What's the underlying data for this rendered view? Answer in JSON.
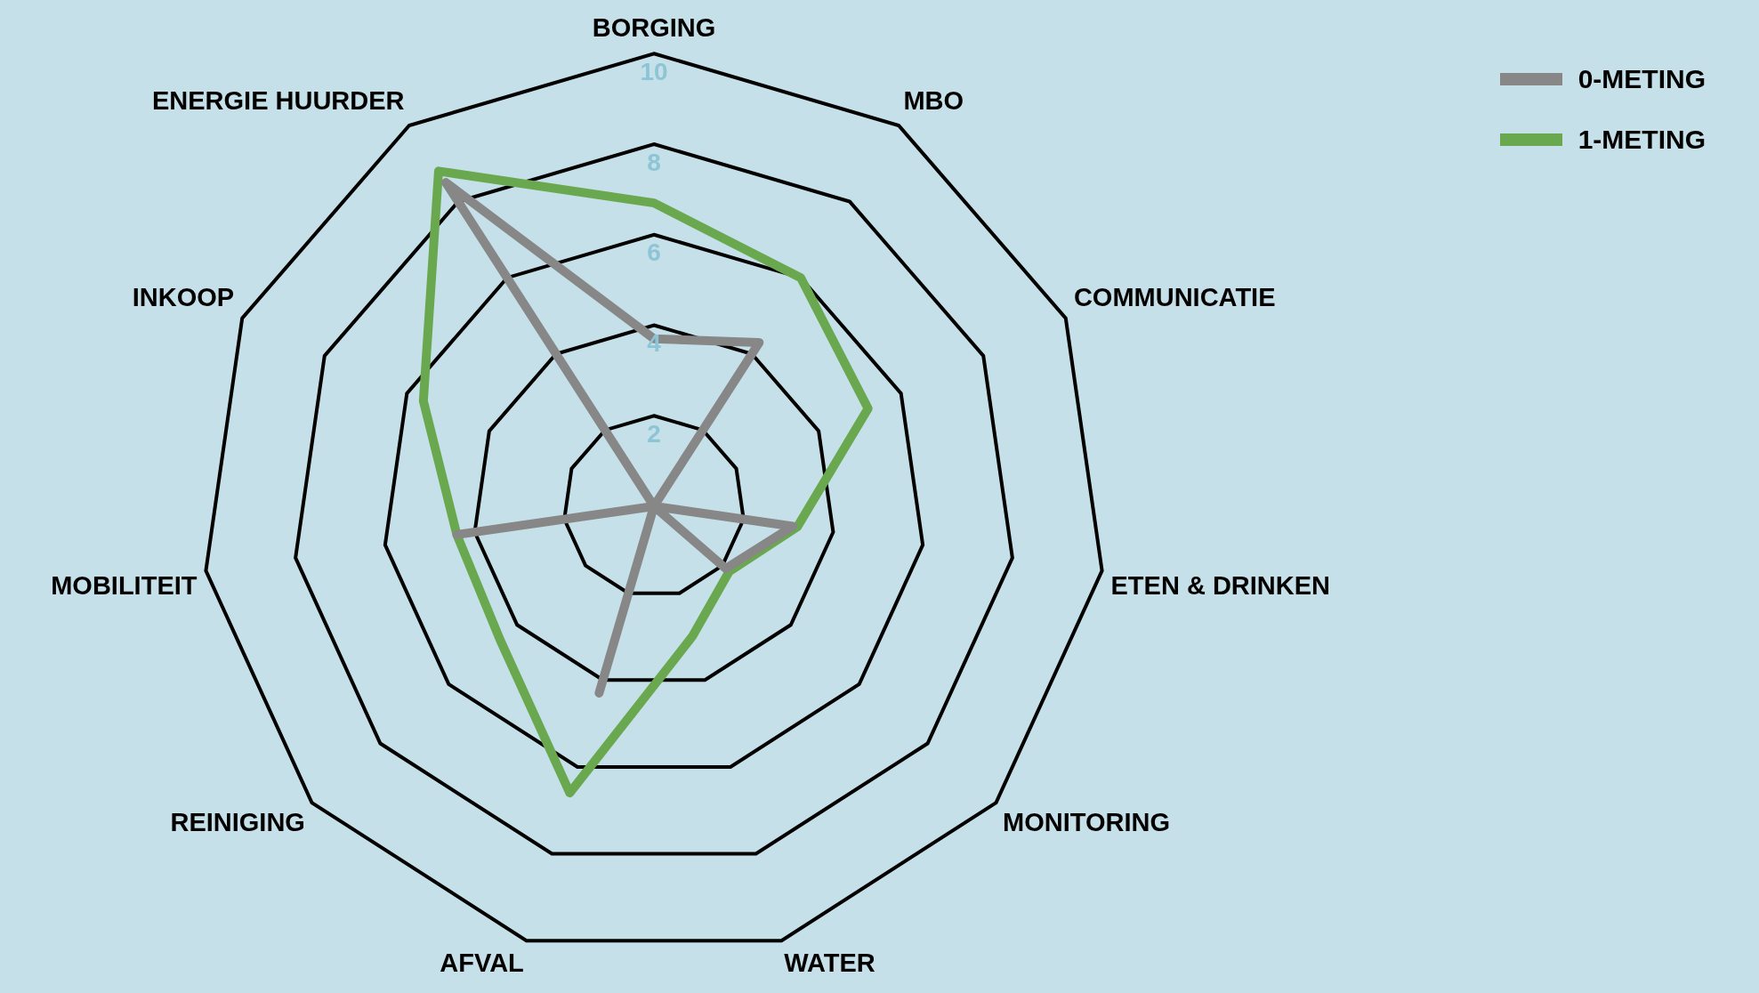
{
  "chart_data": {
    "type": "radar",
    "categories": [
      "BORGING",
      "MBO",
      "COMMUNICATIE",
      "ETEN & DRINKEN",
      "MONITORING",
      "WATER",
      "AFVAL",
      "REINIGING",
      "MOBILITEIT",
      "INKOOP",
      "ENERGIE HUURDER"
    ],
    "series": [
      {
        "name": "0-METING",
        "color": "#878787",
        "values": [
          3.7,
          4.3,
          0,
          3.1,
          2.1,
          0,
          4.3,
          0,
          4.4,
          0,
          8.5
        ]
      },
      {
        "name": "1-METING",
        "color": "#6aa84f",
        "values": [
          6.7,
          6.0,
          5.2,
          3.2,
          2.2,
          3.0,
          6.6,
          4.5,
          4.4,
          5.6,
          8.8
        ]
      }
    ],
    "ylim": [
      0,
      10
    ],
    "yticks": [
      2,
      4,
      6,
      8,
      10
    ],
    "grid": true,
    "legend": "top right",
    "marker": "none",
    "line_style": "solid"
  }
}
